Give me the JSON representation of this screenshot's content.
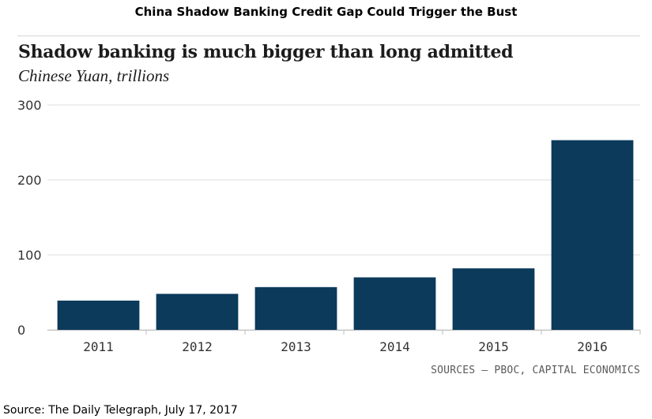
{
  "header": {
    "title": "China Shadow Banking Credit Gap Could Trigger the Bust"
  },
  "footer": {
    "source": "Source: The Daily Telegraph, July 17, 2017",
    "sources_note": "SOURCES – PBOC, CAPITAL ECONOMICS"
  },
  "colors": {
    "bar": "#0b3a5b",
    "grid": "#dddddd",
    "axis_text": "#333333"
  },
  "chart_data": {
    "type": "bar",
    "title": "Shadow banking is much bigger than long admitted",
    "subtitle": "Chinese Yuan, trillions",
    "xlabel": "",
    "ylabel": "",
    "categories": [
      "2011",
      "2012",
      "2013",
      "2014",
      "2015",
      "2016"
    ],
    "values": [
      39,
      48,
      57,
      70,
      82,
      253
    ],
    "ylim": [
      0,
      300
    ],
    "yticks": [
      "0",
      "100",
      "200",
      "300"
    ],
    "grid": true,
    "legend": "none"
  }
}
